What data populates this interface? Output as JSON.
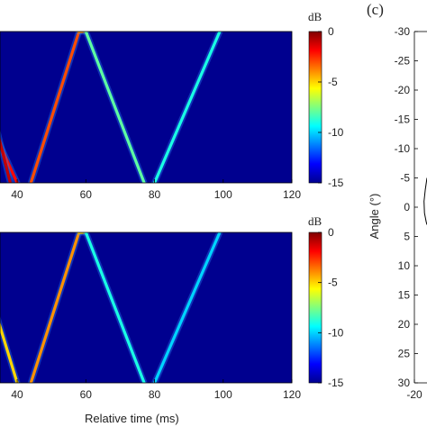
{
  "chart_data": [
    {
      "type": "heatmap",
      "xlabel": "",
      "ylabel": "",
      "x_ticks": [
        "40",
        "60",
        "80",
        "100",
        "120"
      ],
      "xlim": [
        35,
        120
      ],
      "colorbar": {
        "label": "dB",
        "ticks": [
          "0",
          "-5",
          "-10",
          "-15"
        ],
        "range": [
          -15,
          0
        ]
      },
      "tracks": [
        {
          "points": [
            [
              34,
              0.7
            ],
            [
              40,
              1.0
            ]
          ],
          "level": -2
        },
        {
          "points": [
            [
              44,
              1.0
            ],
            [
              58,
              0.0
            ]
          ],
          "level": -3
        },
        {
          "points": [
            [
              58,
              0.0
            ],
            [
              60,
              0.0
            ]
          ],
          "level": -4
        },
        {
          "points": [
            [
              60,
              0.0
            ],
            [
              77,
              1.0
            ]
          ],
          "level": -8
        },
        {
          "points": [
            [
              80,
              1.0
            ],
            [
              99,
              0.0
            ]
          ],
          "level": -9
        },
        {
          "points": [
            [
              33,
              0.55
            ],
            [
              38,
              1.0
            ]
          ],
          "level": -1
        }
      ]
    },
    {
      "type": "heatmap",
      "xlabel": "Relative time (ms)",
      "ylabel": "",
      "x_ticks": [
        "40",
        "60",
        "80",
        "100",
        "120"
      ],
      "xlim": [
        35,
        120
      ],
      "colorbar": {
        "label": "dB",
        "ticks": [
          "0",
          "-5",
          "-10",
          "-15"
        ],
        "range": [
          -15,
          0
        ]
      },
      "tracks": [
        {
          "points": [
            [
              34,
              0.55
            ],
            [
              40,
              1.0
            ]
          ],
          "level": -5
        },
        {
          "points": [
            [
              44,
              1.0
            ],
            [
              58,
              0.0
            ]
          ],
          "level": -4
        },
        {
          "points": [
            [
              58,
              0.0
            ],
            [
              60,
              0.0
            ]
          ],
          "level": -5
        },
        {
          "points": [
            [
              60,
              0.0
            ],
            [
              77,
              1.0
            ]
          ],
          "level": -9
        },
        {
          "points": [
            [
              80,
              1.0
            ],
            [
              99,
              0.0
            ]
          ],
          "level": -10
        }
      ]
    },
    {
      "type": "line",
      "panel_label": "(c)",
      "ylabel": "Angle (°)",
      "y_ticks": [
        "-30",
        "-25",
        "-20",
        "-15",
        "-10",
        "-5",
        "0",
        "5",
        "10",
        "15",
        "20",
        "25",
        "30"
      ],
      "ylim": [
        -30,
        30
      ],
      "x_ticks": [
        "-20"
      ],
      "xlim": [
        -20,
        -17
      ],
      "series": [
        {
          "x": [
            -17.0,
            -17.4,
            -17.7,
            -17.6,
            -17.2,
            -17.0
          ],
          "y": [
            -5,
            -3,
            -1,
            1,
            2.5,
            3
          ]
        }
      ]
    }
  ]
}
